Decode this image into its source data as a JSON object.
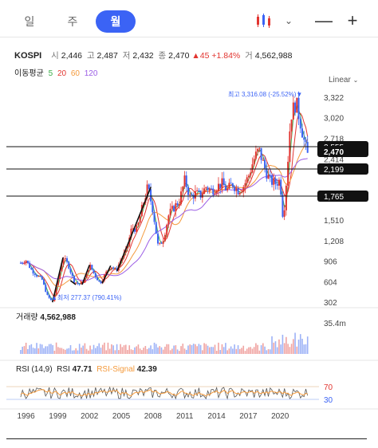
{
  "tabs": [
    {
      "label": "일",
      "active": false
    },
    {
      "label": "주",
      "active": false
    },
    {
      "label": "월",
      "active": true
    }
  ],
  "toolbar": {
    "chart_type_icon": "candlestick-icon",
    "dropdown_icon": "chevron-down-icon",
    "minimize_icon": "minus-icon",
    "add_icon": "plus-icon",
    "minus_glyph": "—",
    "plus_glyph": "+"
  },
  "info": {
    "name": "KOSPI",
    "open_label": "시",
    "open": "2,446",
    "high_label": "고",
    "high": "2,487",
    "low_label": "저",
    "low": "2,432",
    "close_label": "종",
    "close": "2,470",
    "change": "▲45",
    "change_pct": "+1.84%",
    "volume_label": "거",
    "volume": "4,562,988"
  },
  "moving_average": {
    "label": "이동평균",
    "periods": [
      {
        "value": "5",
        "color": "#3cae4a"
      },
      {
        "value": "20",
        "color": "#e2342f"
      },
      {
        "value": "60",
        "color": "#f49a3c"
      },
      {
        "value": "120",
        "color": "#9b5de5"
      }
    ]
  },
  "scale_button": "Linear",
  "price_axis": [
    "3,322",
    "3,020",
    "2,718",
    "2,414",
    "1,510",
    "1,208",
    "906",
    "604",
    "302"
  ],
  "high_marker": "최고 3,316.08 (-25.52%)▼",
  "low_marker": "▲최저 277.37 (790.41%)",
  "price_lines": [
    {
      "label": "2,555",
      "style": "outline"
    },
    {
      "label": "2,470",
      "style": "filled"
    },
    {
      "label": "2,199",
      "style": "outline"
    },
    {
      "label": "1,765",
      "style": "outline"
    }
  ],
  "volume_panel": {
    "label": "거래량",
    "value": "4,562,988",
    "axis": "35.4m"
  },
  "rsi_panel": {
    "label": "RSI (14,9)",
    "rsi_label": "RSI",
    "rsi_value": "47.71",
    "signal_label": "RSI-Signal",
    "signal_value": "42.39",
    "upper": "70",
    "lower": "30"
  },
  "x_axis": [
    "1996",
    "1999",
    "2002",
    "2005",
    "2008",
    "2011",
    "2014",
    "2017",
    "2020"
  ],
  "chart_data": {
    "type": "line",
    "title": "",
    "xlabel": "",
    "ylabel": "",
    "x": [
      1995.5,
      1996,
      1996.5,
      1997,
      1997.5,
      1998,
      1998.5,
      1999,
      1999.5,
      2000,
      2000.5,
      2001,
      2001.5,
      2002,
      2002.5,
      2003,
      2003.5,
      2004,
      2004.5,
      2005,
      2005.5,
      2006,
      2006.5,
      2007,
      2007.5,
      2008,
      2008.5,
      2009,
      2009.5,
      2010,
      2010.5,
      2011,
      2011.5,
      2012,
      2012.5,
      2013,
      2013.5,
      2014,
      2014.5,
      2015,
      2015.5,
      2016,
      2016.5,
      2017,
      2017.5,
      2018,
      2018.5,
      2019,
      2019.5,
      2020,
      2020.3,
      2020.7,
      2021,
      2021.5,
      2022,
      2022.3,
      2022.6
    ],
    "series": [
      {
        "values": [
          880,
          920,
          780,
          700,
          640,
          400,
          300,
          620,
          960,
          850,
          620,
          560,
          620,
          850,
          700,
          580,
          720,
          840,
          760,
          940,
          1070,
          1400,
          1380,
          1710,
          2000,
          1650,
          1100,
          1250,
          1600,
          1700,
          1800,
          2100,
          1850,
          1900,
          1880,
          2000,
          1950,
          2000,
          2050,
          1950,
          2050,
          1950,
          2000,
          2150,
          2400,
          2550,
          2300,
          2100,
          2050,
          2100,
          1500,
          2300,
          3050,
          3250,
          2900,
          2650,
          2470
        ]
      }
    ],
    "ylim": [
      200,
      3450
    ],
    "xlim": [
      1994.3,
      2023.3
    ]
  }
}
